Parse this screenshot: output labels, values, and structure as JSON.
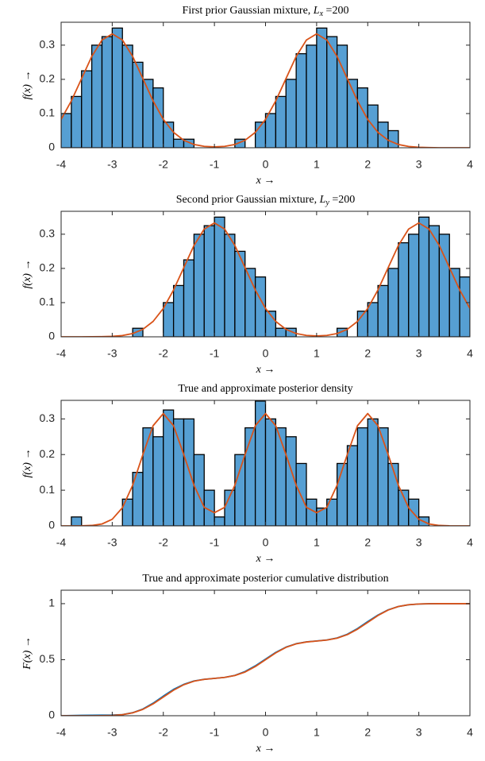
{
  "chart_data": [
    {
      "type": "histogram",
      "title": {
        "text": "First prior Gaussian mixture, ",
        "symbol": "L",
        "subscript": "x",
        "suffix": " =200"
      },
      "xlabel": "x →",
      "ylabel": "f(x) →",
      "bins": [
        -4,
        -3.8,
        -3.6,
        -3.4,
        -3.2,
        -3,
        -2.8,
        -2.6,
        -2.4,
        -2.2,
        -2,
        -1.8,
        -1.6,
        -1.4,
        -1.2,
        -1,
        -0.8,
        -0.6,
        -0.4,
        -0.2,
        0,
        0.2,
        0.4,
        0.6,
        0.8,
        1,
        1.2,
        1.4,
        1.6,
        1.8,
        2,
        2.2,
        2.4,
        2.6,
        2.8,
        3,
        3.2,
        3.4,
        3.6,
        3.8,
        4
      ],
      "values": [
        0.1,
        0.15,
        0.225,
        0.3,
        0.325,
        0.35,
        0.3,
        0.25,
        0.2,
        0.175,
        0.075,
        0.025,
        0.025,
        0,
        0,
        0,
        0,
        0.025,
        0,
        0.075,
        0.1,
        0.15,
        0.2,
        0.275,
        0.3,
        0.35,
        0.325,
        0.3,
        0.2,
        0.175,
        0.125,
        0.075,
        0.05,
        0,
        0,
        0,
        0,
        0,
        0,
        0
      ],
      "color": "#569fd3",
      "curve": {
        "color": "#d95319",
        "x": [
          -4,
          -3.8,
          -3.6,
          -3.4,
          -3.2,
          -3,
          -2.8,
          -2.6,
          -2.4,
          -2.2,
          -2,
          -1.8,
          -1.6,
          -1.4,
          -1.2,
          -1,
          -0.8,
          -0.6,
          -0.4,
          -0.2,
          0,
          0.2,
          0.4,
          0.6,
          0.8,
          1,
          1.2,
          1.4,
          1.6,
          1.8,
          2,
          2.2,
          2.4,
          2.6,
          2.8,
          3,
          3.2,
          3.4,
          3.6,
          3.8,
          4
        ],
        "values": [
          0.083,
          0.137,
          0.202,
          0.267,
          0.315,
          0.333,
          0.315,
          0.267,
          0.202,
          0.137,
          0.083,
          0.045,
          0.022,
          0.0095,
          0.0041,
          0.0026,
          0.0041,
          0.0095,
          0.022,
          0.045,
          0.083,
          0.137,
          0.202,
          0.267,
          0.315,
          0.333,
          0.315,
          0.267,
          0.202,
          0.137,
          0.083,
          0.045,
          0.022,
          0.0095,
          0.0037,
          0.0013,
          0.0004,
          0,
          0,
          0,
          0
        ]
      },
      "xlim": [
        -4,
        4
      ],
      "xticks": [
        -4,
        -3,
        -2,
        -1,
        0,
        1,
        2,
        3,
        4
      ],
      "ylim": [
        0,
        0.367
      ],
      "yticks": [
        0,
        0.1,
        0.2,
        0.3
      ]
    },
    {
      "type": "histogram",
      "title": {
        "text": "Second prior Gaussian mixture, ",
        "symbol": "L",
        "subscript": "y",
        "suffix": " =200"
      },
      "xlabel": "x →",
      "ylabel": "f(x) →",
      "bins": [
        -4,
        -3.8,
        -3.6,
        -3.4,
        -3.2,
        -3,
        -2.8,
        -2.6,
        -2.4,
        -2.2,
        -2,
        -1.8,
        -1.6,
        -1.4,
        -1.2,
        -1,
        -0.8,
        -0.6,
        -0.4,
        -0.2,
        0,
        0.2,
        0.4,
        0.6,
        0.8,
        1,
        1.2,
        1.4,
        1.6,
        1.8,
        2,
        2.2,
        2.4,
        2.6,
        2.8,
        3,
        3.2,
        3.4,
        3.6,
        3.8,
        4
      ],
      "values": [
        0,
        0,
        0,
        0,
        0,
        0,
        0,
        0.025,
        0,
        0,
        0.1,
        0.15,
        0.225,
        0.3,
        0.325,
        0.35,
        0.3,
        0.25,
        0.2,
        0.175,
        0.075,
        0.025,
        0.025,
        0,
        0,
        0,
        0,
        0.025,
        0,
        0.075,
        0.1,
        0.15,
        0.2,
        0.275,
        0.3,
        0.35,
        0.325,
        0.3,
        0.2,
        0.175
      ],
      "color": "#569fd3",
      "curve": {
        "color": "#d95319",
        "x": [
          -4,
          -3.8,
          -3.6,
          -3.4,
          -3.2,
          -3,
          -2.8,
          -2.6,
          -2.4,
          -2.2,
          -2,
          -1.8,
          -1.6,
          -1.4,
          -1.2,
          -1,
          -0.8,
          -0.6,
          -0.4,
          -0.2,
          0,
          0.2,
          0.4,
          0.6,
          0.8,
          1,
          1.2,
          1.4,
          1.6,
          1.8,
          2,
          2.2,
          2.4,
          2.6,
          2.8,
          3,
          3.2,
          3.4,
          3.6,
          3.8,
          4
        ],
        "values": [
          0,
          0,
          0,
          0.0001,
          0.0004,
          0.0013,
          0.0037,
          0.0095,
          0.022,
          0.045,
          0.083,
          0.137,
          0.202,
          0.267,
          0.315,
          0.333,
          0.315,
          0.267,
          0.202,
          0.137,
          0.083,
          0.045,
          0.022,
          0.0095,
          0.0041,
          0.0026,
          0.0041,
          0.0095,
          0.022,
          0.045,
          0.083,
          0.137,
          0.202,
          0.267,
          0.315,
          0.333,
          0.315,
          0.267,
          0.202,
          0.137,
          0.083
        ]
      },
      "xlim": [
        -4,
        4
      ],
      "xticks": [
        -4,
        -3,
        -2,
        -1,
        0,
        1,
        2,
        3,
        4
      ],
      "ylim": [
        0,
        0.367
      ],
      "yticks": [
        0,
        0.1,
        0.2,
        0.3
      ]
    },
    {
      "type": "histogram",
      "title": "True and approximate posterior density",
      "xlabel": "x →",
      "ylabel": "f(x) →",
      "bins": [
        -4,
        -3.8,
        -3.6,
        -3.4,
        -3.2,
        -3,
        -2.8,
        -2.6,
        -2.4,
        -2.2,
        -2,
        -1.8,
        -1.6,
        -1.4,
        -1.2,
        -1,
        -0.8,
        -0.6,
        -0.4,
        -0.2,
        0,
        0.2,
        0.4,
        0.6,
        0.8,
        1,
        1.2,
        1.4,
        1.6,
        1.8,
        2,
        2.2,
        2.4,
        2.6,
        2.8,
        3,
        3.2,
        3.4,
        3.6,
        3.8,
        4
      ],
      "values": [
        0,
        0.025,
        0,
        0,
        0,
        0,
        0.075,
        0.15,
        0.275,
        0.25,
        0.325,
        0.3,
        0.3,
        0.2,
        0.1,
        0.025,
        0.1,
        0.2,
        0.275,
        0.35,
        0.3,
        0.275,
        0.25,
        0.175,
        0.075,
        0.05,
        0.075,
        0.175,
        0.225,
        0.275,
        0.3,
        0.275,
        0.175,
        0.1,
        0.075,
        0.025,
        0,
        0,
        0,
        0
      ],
      "color": "#569fd3",
      "curve": {
        "color": "#d95319",
        "x": [
          -4,
          -3.8,
          -3.6,
          -3.4,
          -3.2,
          -3,
          -2.8,
          -2.6,
          -2.4,
          -2.2,
          -2,
          -1.8,
          -1.6,
          -1.4,
          -1.2,
          -1,
          -0.8,
          -0.6,
          -0.4,
          -0.2,
          0,
          0.2,
          0.4,
          0.6,
          0.8,
          1,
          1.2,
          1.4,
          1.6,
          1.8,
          2,
          2.2,
          2.4,
          2.6,
          2.8,
          3,
          3.2,
          3.4,
          3.6,
          3.8,
          4
        ],
        "values": [
          0,
          0,
          0.0002,
          0.0012,
          0.0053,
          0.0185,
          0.051,
          0.114,
          0.2,
          0.281,
          0.315,
          0.281,
          0.2,
          0.114,
          0.052,
          0.037,
          0.052,
          0.114,
          0.2,
          0.281,
          0.315,
          0.281,
          0.2,
          0.114,
          0.052,
          0.037,
          0.052,
          0.114,
          0.2,
          0.281,
          0.315,
          0.281,
          0.2,
          0.114,
          0.051,
          0.0185,
          0.0053,
          0.0012,
          0.0002,
          0,
          0
        ]
      },
      "xlim": [
        -4,
        4
      ],
      "xticks": [
        -4,
        -3,
        -2,
        -1,
        0,
        1,
        2,
        3,
        4
      ],
      "ylim": [
        0,
        0.352
      ],
      "yticks": [
        0,
        0.1,
        0.2,
        0.3
      ]
    },
    {
      "type": "line",
      "title": "True and approximate posterior cumulative distribution",
      "xlabel": "x →",
      "ylabel": "F(x) →",
      "x": [
        -4,
        -3.8,
        -3.6,
        -3.4,
        -3.2,
        -3,
        -2.8,
        -2.6,
        -2.4,
        -2.2,
        -2,
        -1.8,
        -1.6,
        -1.4,
        -1.2,
        -1,
        -0.8,
        -0.6,
        -0.4,
        -0.2,
        0,
        0.2,
        0.4,
        0.6,
        0.8,
        1,
        1.2,
        1.4,
        1.6,
        1.8,
        2,
        2.2,
        2.4,
        2.6,
        2.8,
        3,
        3.2,
        3.4,
        3.6,
        3.8,
        4
      ],
      "series": [
        {
          "color": "#0072bd",
          "values": [
            0,
            0.002,
            0.003,
            0.004,
            0.005,
            0.006,
            0.01,
            0.027,
            0.06,
            0.112,
            0.175,
            0.235,
            0.28,
            0.31,
            0.325,
            0.333,
            0.342,
            0.36,
            0.395,
            0.445,
            0.505,
            0.565,
            0.612,
            0.643,
            0.659,
            0.667,
            0.676,
            0.694,
            0.727,
            0.778,
            0.84,
            0.898,
            0.945,
            0.975,
            0.99,
            0.997,
            0.999,
            1,
            1,
            1,
            1
          ]
        },
        {
          "color": "#d95319",
          "values": [
            0,
            0,
            0,
            0.0001,
            0.0007,
            0.0029,
            0.0095,
            0.0255,
            0.0568,
            0.1057,
            0.1667,
            0.2277,
            0.2765,
            0.308,
            0.3246,
            0.3334,
            0.3421,
            0.3587,
            0.3901,
            0.439,
            0.5,
            0.561,
            0.6099,
            0.6413,
            0.6579,
            0.6666,
            0.6754,
            0.692,
            0.7235,
            0.7723,
            0.8333,
            0.8943,
            0.9432,
            0.9745,
            0.9905,
            0.9971,
            0.9993,
            0.9999,
            1,
            1,
            1
          ]
        }
      ],
      "xlim": [
        -4,
        4
      ],
      "xticks": [
        -4,
        -3,
        -2,
        -1,
        0,
        1,
        2,
        3,
        4
      ],
      "ylim": [
        0,
        1.12
      ],
      "yticks": [
        0,
        0.5,
        1
      ]
    }
  ]
}
